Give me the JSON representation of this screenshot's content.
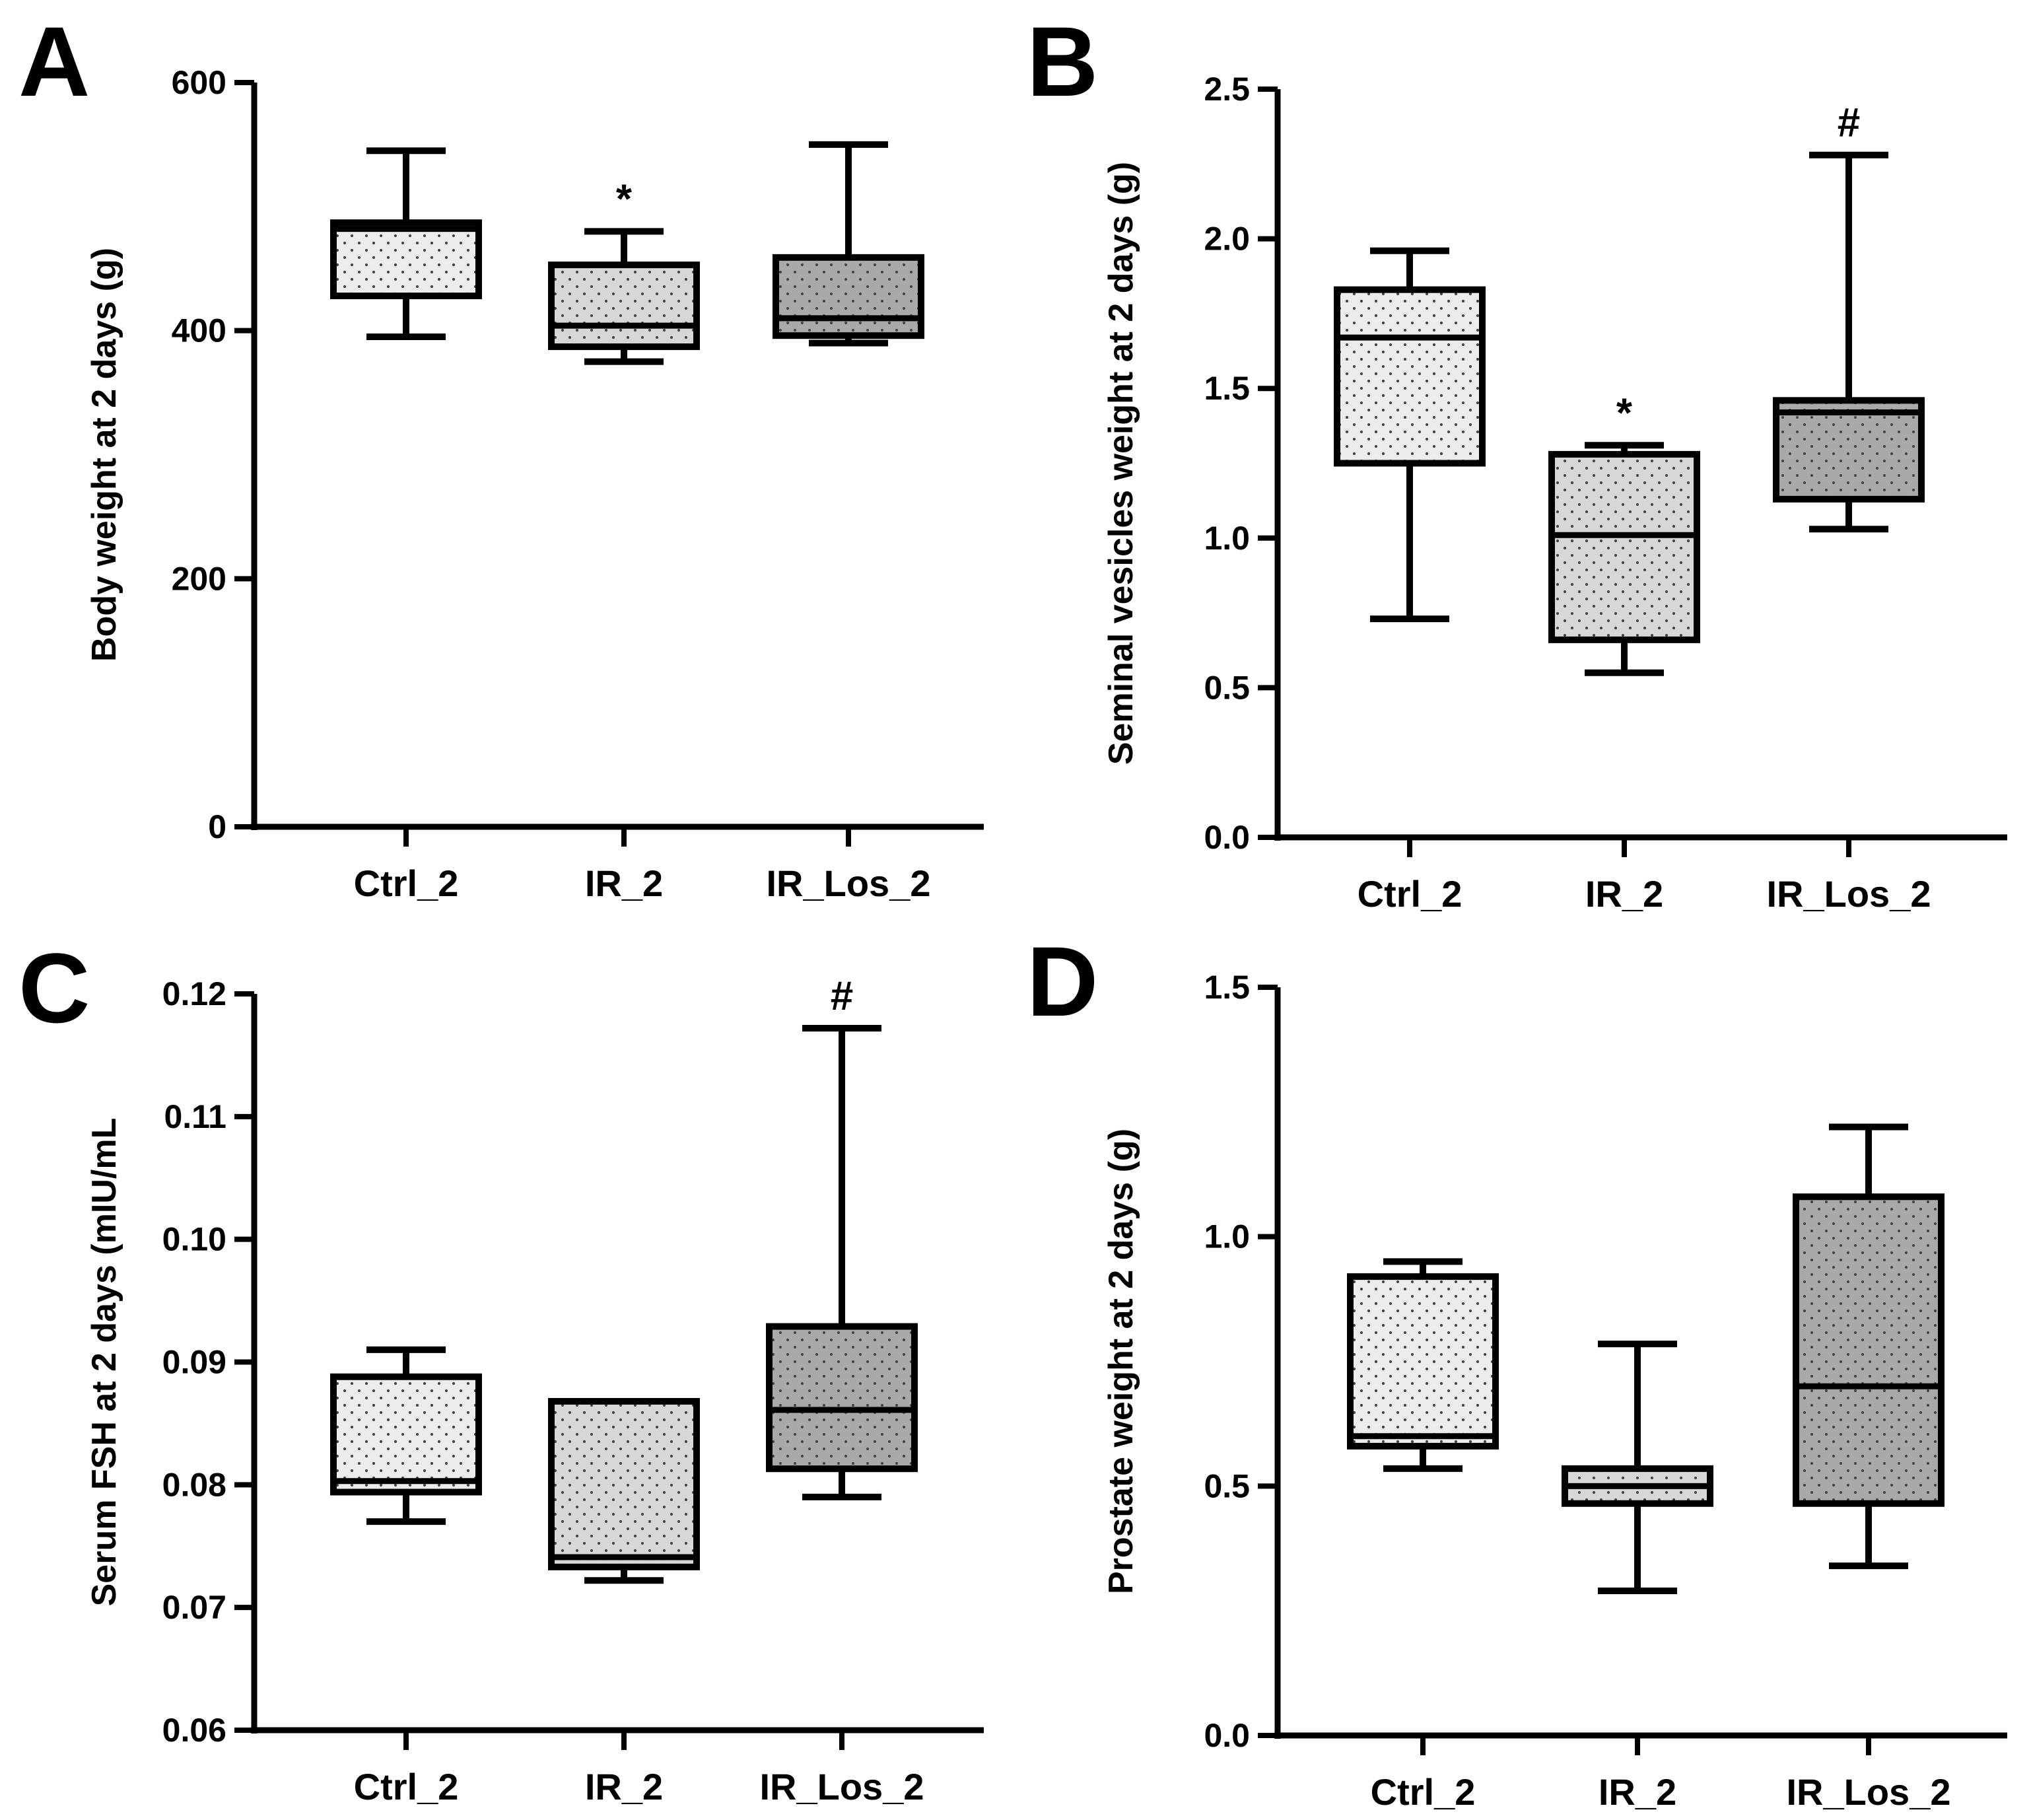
{
  "colors": {
    "light": "#ececec",
    "mid": "#d7d7d7",
    "dark": "#a9a9a9",
    "dots": "#444444",
    "stroke": "#000000"
  },
  "chart_data": [
    {
      "panel": "A",
      "type": "box",
      "ylabel": "Body weight at 2 days (g)",
      "ylim": [
        0,
        600
      ],
      "yticks": [
        0,
        200,
        400,
        600
      ],
      "ytick_labels": [
        "0",
        "200",
        "400",
        "600"
      ],
      "categories": [
        "Ctrl_2",
        "IR_2",
        "IR_Los_2"
      ],
      "boxes": [
        {
          "min": 395,
          "q1": 428,
          "median": 482,
          "q3": 487,
          "max": 545,
          "fill": "light",
          "sig": ""
        },
        {
          "min": 375,
          "q1": 387,
          "median": 404,
          "q3": 453,
          "max": 480,
          "fill": "mid",
          "sig": "*"
        },
        {
          "min": 390,
          "q1": 396,
          "median": 410,
          "q3": 459,
          "max": 550,
          "fill": "dark",
          "sig": ""
        }
      ]
    },
    {
      "panel": "B",
      "type": "box",
      "ylabel": "Seminal vesicles weight at 2 days (g)",
      "ylim": [
        0,
        2.5
      ],
      "yticks": [
        0,
        0.5,
        1.0,
        1.5,
        2.0,
        2.5
      ],
      "ytick_labels": [
        "0.0",
        "0.5",
        "1.0",
        "1.5",
        "2.0",
        "2.5"
      ],
      "categories": [
        "Ctrl_2",
        "IR_2",
        "IR_Los_2"
      ],
      "boxes": [
        {
          "min": 0.73,
          "q1": 1.25,
          "median": 1.67,
          "q3": 1.83,
          "max": 1.96,
          "fill": "light",
          "sig": ""
        },
        {
          "min": 0.55,
          "q1": 0.66,
          "median": 1.01,
          "q3": 1.28,
          "max": 1.31,
          "fill": "mid",
          "sig": "*"
        },
        {
          "min": 1.03,
          "q1": 1.13,
          "median": 1.42,
          "q3": 1.46,
          "max": 2.28,
          "fill": "dark",
          "sig": "#"
        }
      ]
    },
    {
      "panel": "C",
      "type": "box",
      "ylabel": "Serum FSH at 2 days (mIU/mL",
      "ylim": [
        0.06,
        0.12
      ],
      "yticks": [
        0.06,
        0.07,
        0.08,
        0.09,
        0.1,
        0.11,
        0.12
      ],
      "ytick_labels": [
        "0.06",
        "0.07",
        "0.08",
        "0.09",
        "0.10",
        "0.11",
        "0.12"
      ],
      "categories": [
        "Ctrl_2",
        "IR_2",
        "IR_Los_2"
      ],
      "boxes": [
        {
          "min": 0.077,
          "q1": 0.0794,
          "median": 0.0803,
          "q3": 0.0888,
          "max": 0.091,
          "fill": "light",
          "sig": ""
        },
        {
          "min": 0.0722,
          "q1": 0.0733,
          "median": 0.0741,
          "q3": 0.0868,
          "max": 0.0868,
          "fill": "mid",
          "sig": ""
        },
        {
          "min": 0.079,
          "q1": 0.0813,
          "median": 0.0861,
          "q3": 0.0929,
          "max": 0.1172,
          "fill": "dark",
          "sig": "#"
        }
      ]
    },
    {
      "panel": "D",
      "type": "box",
      "ylabel": "Prostate weight at 2 days (g)",
      "ylim": [
        0,
        1.5
      ],
      "yticks": [
        0,
        0.5,
        1.0,
        1.5
      ],
      "ytick_labels": [
        "0.0",
        "0.5",
        "1.0",
        "1.5"
      ],
      "categories": [
        "Ctrl_2",
        "IR_2",
        "IR_Los_2"
      ],
      "boxes": [
        {
          "min": 0.535,
          "q1": 0.58,
          "median": 0.6,
          "q3": 0.92,
          "max": 0.95,
          "fill": "light",
          "sig": ""
        },
        {
          "min": 0.29,
          "q1": 0.465,
          "median": 0.5,
          "q3": 0.535,
          "max": 0.785,
          "fill": "mid",
          "sig": ""
        },
        {
          "min": 0.34,
          "q1": 0.465,
          "median": 0.7,
          "q3": 1.08,
          "max": 1.22,
          "fill": "dark",
          "sig": ""
        }
      ]
    }
  ]
}
